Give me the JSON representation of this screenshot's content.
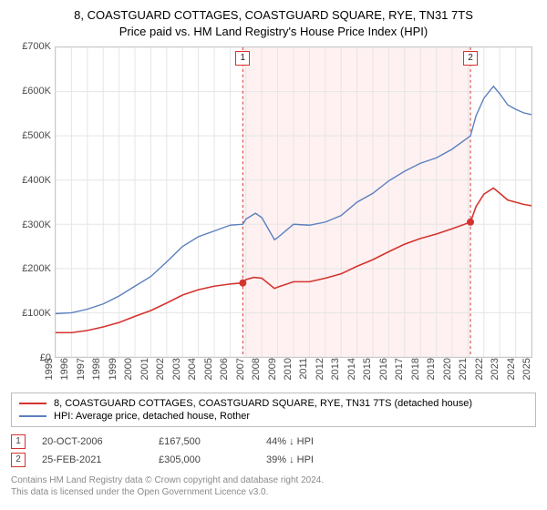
{
  "title_line1": "8, COASTGUARD COTTAGES, COASTGUARD SQUARE, RYE, TN31 7TS",
  "title_line2": "Price paid vs. HM Land Registry's House Price Index (HPI)",
  "chart": {
    "type": "line",
    "background_color": "#ffffff",
    "grid_color": "#e5e5e5",
    "border_color": "#c9c9c9",
    "title_fontsize": 13,
    "axis_fontsize": 11,
    "x": {
      "min": 1995,
      "max": 2025,
      "ticks": [
        1995,
        1996,
        1997,
        1998,
        1999,
        2000,
        2001,
        2002,
        2003,
        2004,
        2005,
        2006,
        2007,
        2008,
        2009,
        2010,
        2011,
        2012,
        2013,
        2014,
        2015,
        2016,
        2017,
        2018,
        2019,
        2020,
        2021,
        2022,
        2023,
        2024,
        2025
      ]
    },
    "y": {
      "min": 0,
      "max": 700000,
      "ticks": [
        0,
        100000,
        200000,
        300000,
        400000,
        500000,
        600000,
        700000
      ],
      "tick_labels": [
        "£0",
        "£100K",
        "£200K",
        "£300K",
        "£400K",
        "£500K",
        "£600K",
        "£700K"
      ]
    },
    "band": {
      "from": 2006.8,
      "to": 2021.15,
      "fill": "#fff1f1"
    },
    "series": [
      {
        "id": "subject",
        "label": "8, COASTGUARD COTTAGES, COASTGUARD SQUARE, RYE, TN31 7TS (detached house)",
        "color": "#d4342f",
        "line_width": 1.6,
        "points": [
          [
            1995.0,
            55000
          ],
          [
            1996.0,
            55000
          ],
          [
            1997.0,
            60000
          ],
          [
            1998.0,
            68000
          ],
          [
            1999.0,
            78000
          ],
          [
            2000.0,
            92000
          ],
          [
            2001.0,
            105000
          ],
          [
            2002.0,
            122000
          ],
          [
            2003.0,
            140000
          ],
          [
            2004.0,
            152000
          ],
          [
            2005.0,
            160000
          ],
          [
            2006.0,
            165000
          ],
          [
            2006.8,
            167500
          ],
          [
            2007.0,
            175000
          ],
          [
            2007.5,
            180000
          ],
          [
            2008.0,
            178000
          ],
          [
            2008.8,
            155000
          ],
          [
            2009.0,
            158000
          ],
          [
            2010.0,
            170000
          ],
          [
            2011.0,
            170000
          ],
          [
            2012.0,
            178000
          ],
          [
            2013.0,
            188000
          ],
          [
            2014.0,
            205000
          ],
          [
            2015.0,
            220000
          ],
          [
            2016.0,
            238000
          ],
          [
            2017.0,
            255000
          ],
          [
            2018.0,
            268000
          ],
          [
            2019.0,
            278000
          ],
          [
            2020.0,
            290000
          ],
          [
            2021.15,
            305000
          ],
          [
            2021.5,
            340000
          ],
          [
            2022.0,
            368000
          ],
          [
            2022.6,
            382000
          ],
          [
            2023.0,
            370000
          ],
          [
            2023.5,
            355000
          ],
          [
            2024.0,
            350000
          ],
          [
            2024.5,
            345000
          ],
          [
            2025.0,
            342000
          ]
        ]
      },
      {
        "id": "hpi",
        "label": "HPI: Average price, detached house, Rother",
        "color": "#5b7fbf",
        "line_width": 1.4,
        "points": [
          [
            1995.0,
            98000
          ],
          [
            1996.0,
            100000
          ],
          [
            1997.0,
            108000
          ],
          [
            1998.0,
            120000
          ],
          [
            1999.0,
            138000
          ],
          [
            2000.0,
            160000
          ],
          [
            2001.0,
            182000
          ],
          [
            2002.0,
            215000
          ],
          [
            2003.0,
            250000
          ],
          [
            2004.0,
            272000
          ],
          [
            2005.0,
            285000
          ],
          [
            2006.0,
            298000
          ],
          [
            2006.8,
            300000
          ],
          [
            2007.0,
            312000
          ],
          [
            2007.6,
            325000
          ],
          [
            2008.0,
            315000
          ],
          [
            2008.8,
            265000
          ],
          [
            2009.0,
            270000
          ],
          [
            2010.0,
            300000
          ],
          [
            2011.0,
            298000
          ],
          [
            2012.0,
            305000
          ],
          [
            2013.0,
            320000
          ],
          [
            2014.0,
            350000
          ],
          [
            2015.0,
            370000
          ],
          [
            2016.0,
            398000
          ],
          [
            2017.0,
            420000
          ],
          [
            2018.0,
            438000
          ],
          [
            2019.0,
            450000
          ],
          [
            2020.0,
            470000
          ],
          [
            2021.15,
            500000
          ],
          [
            2021.5,
            545000
          ],
          [
            2022.0,
            585000
          ],
          [
            2022.6,
            612000
          ],
          [
            2023.0,
            595000
          ],
          [
            2023.5,
            570000
          ],
          [
            2024.0,
            560000
          ],
          [
            2024.5,
            552000
          ],
          [
            2025.0,
            548000
          ]
        ]
      }
    ],
    "sale_markers": [
      {
        "id": "1",
        "x": 2006.8,
        "y": 167500,
        "color": "#d4342f",
        "dash_color": "#d4342f",
        "dash": "3,3",
        "date": "20-OCT-2006",
        "price": "£167,500",
        "delta": "44% ↓ HPI"
      },
      {
        "id": "2",
        "x": 2021.15,
        "y": 305000,
        "color": "#d4342f",
        "dash_color": "#d4342f",
        "dash": "3,3",
        "date": "25-FEB-2021",
        "price": "£305,000",
        "delta": "39% ↓ HPI"
      }
    ]
  },
  "footer_line1": "Contains HM Land Registry data © Crown copyright and database right 2024.",
  "footer_line2": "This data is licensed under the Open Government Licence v3.0."
}
